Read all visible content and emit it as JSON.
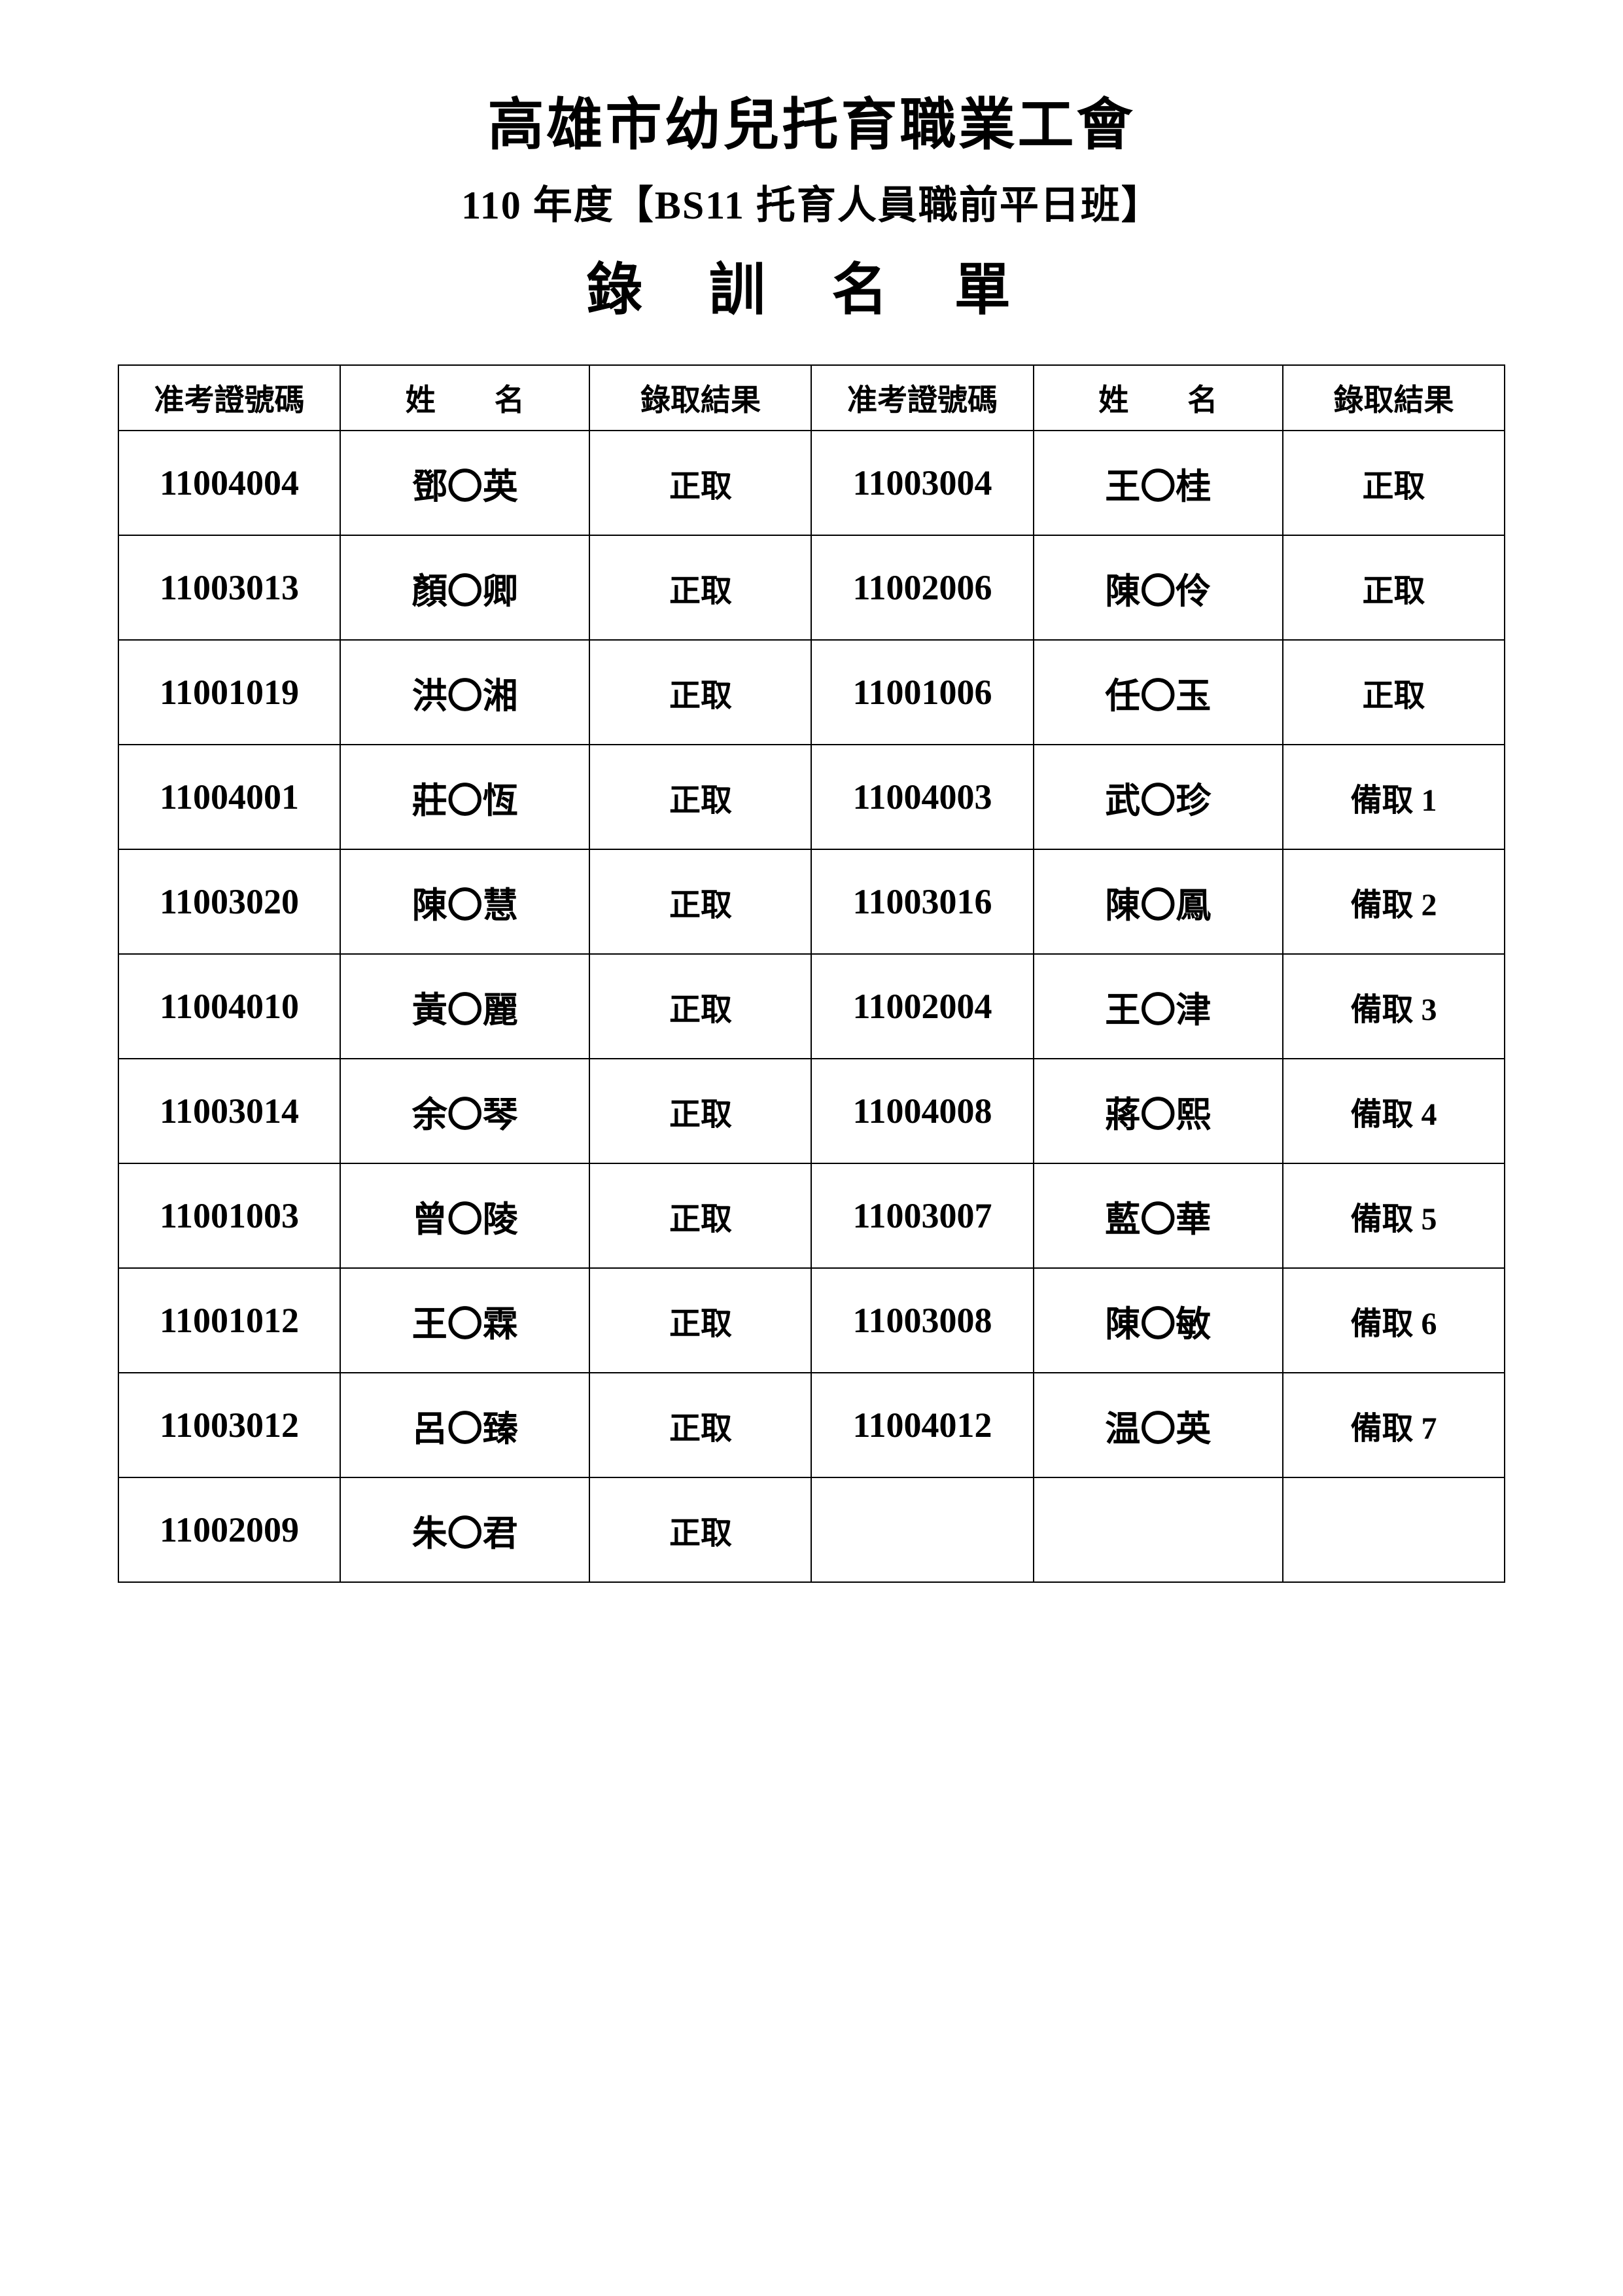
{
  "header": {
    "title_main": "高雄市幼兒托育職業工會",
    "title_sub": "110 年度【BS11 托育人員職前平日班】",
    "title_list": "錄 訓 名 單"
  },
  "table": {
    "headers": {
      "exam_id": "准考證號碼",
      "name_char1": "姓",
      "name_char2": "名",
      "result": "錄取結果"
    },
    "rows": [
      {
        "left_id": "11004004",
        "left_name": "鄧〇英",
        "left_result": "正取",
        "right_id": "11003004",
        "right_name": "王〇桂",
        "right_result": "正取"
      },
      {
        "left_id": "11003013",
        "left_name": "顏〇卿",
        "left_result": "正取",
        "right_id": "11002006",
        "right_name": "陳〇伶",
        "right_result": "正取"
      },
      {
        "left_id": "11001019",
        "left_name": "洪〇湘",
        "left_result": "正取",
        "right_id": "11001006",
        "right_name": "任〇玉",
        "right_result": "正取"
      },
      {
        "left_id": "11004001",
        "left_name": "莊〇恆",
        "left_result": "正取",
        "right_id": "11004003",
        "right_name": "武〇珍",
        "right_result": "備取 1"
      },
      {
        "left_id": "11003020",
        "left_name": "陳〇慧",
        "left_result": "正取",
        "right_id": "11003016",
        "right_name": "陳〇鳳",
        "right_result": "備取 2"
      },
      {
        "left_id": "11004010",
        "left_name": "黃〇麗",
        "left_result": "正取",
        "right_id": "11002004",
        "right_name": "王〇津",
        "right_result": "備取 3"
      },
      {
        "left_id": "11003014",
        "left_name": "余〇琴",
        "left_result": "正取",
        "right_id": "11004008",
        "right_name": "蔣〇熙",
        "right_result": "備取 4"
      },
      {
        "left_id": "11001003",
        "left_name": "曾〇陵",
        "left_result": "正取",
        "right_id": "11003007",
        "right_name": "藍〇華",
        "right_result": "備取 5"
      },
      {
        "left_id": "11001012",
        "left_name": "王〇霖",
        "left_result": "正取",
        "right_id": "11003008",
        "right_name": "陳〇敏",
        "right_result": "備取 6"
      },
      {
        "left_id": "11003012",
        "left_name": "呂〇臻",
        "left_result": "正取",
        "right_id": "11004012",
        "right_name": "温〇英",
        "right_result": "備取 7"
      },
      {
        "left_id": "11002009",
        "left_name": "朱〇君",
        "left_result": "正取",
        "right_id": "",
        "right_name": "",
        "right_result": ""
      }
    ]
  }
}
